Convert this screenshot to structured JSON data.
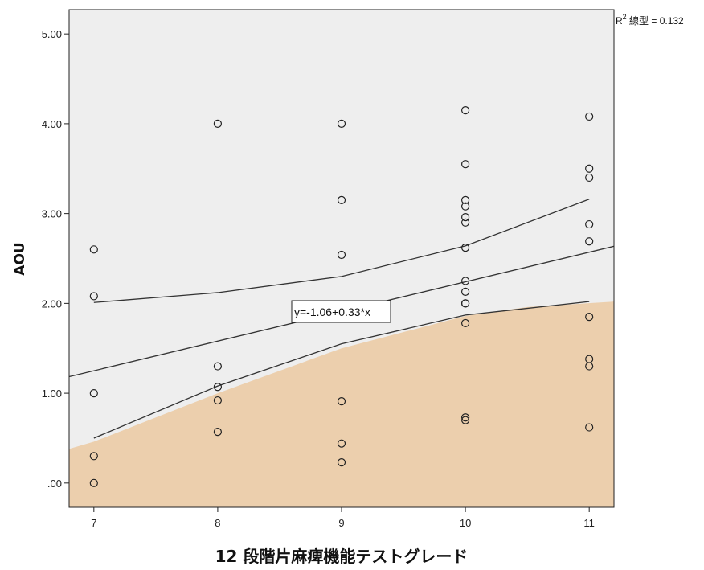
{
  "chart_data": {
    "type": "scatter",
    "title": "",
    "xlabel": "12 段階片麻痺機能テストグレード",
    "ylabel": "AOU",
    "xlim": [
      6.8,
      11.2
    ],
    "ylim": [
      -0.27,
      5.27
    ],
    "x_ticks": [
      "7",
      "8",
      "9",
      "10",
      "11"
    ],
    "y_ticks": [
      ".00",
      "1.00",
      "2.00",
      "3.00",
      "4.00",
      "5.00"
    ],
    "x_tick_values": [
      7,
      8,
      9,
      10,
      11
    ],
    "y_tick_values": [
      0,
      1,
      2,
      3,
      4,
      5
    ],
    "grid": false,
    "r2_label_prefix": "R",
    "r2_label_sup": "2",
    "r2_label_rest": " 線型 = 0.132",
    "fit_equation": "y=-1.06+0.33*x",
    "fit_intercept": -1.06,
    "fit_slope": 0.33,
    "ci_upper": [
      [
        7,
        2.01
      ],
      [
        8,
        2.12
      ],
      [
        9,
        2.3
      ],
      [
        10,
        2.64
      ],
      [
        11,
        3.16
      ]
    ],
    "ci_lower": [
      [
        7,
        0.5
      ],
      [
        8,
        1.08
      ],
      [
        9,
        1.55
      ],
      [
        10,
        1.87
      ],
      [
        11,
        2.02
      ]
    ],
    "highlight_region_upper": [
      [
        6.8,
        0.38
      ],
      [
        7,
        0.46
      ],
      [
        8,
        1.0
      ],
      [
        9,
        1.5
      ],
      [
        10,
        1.86
      ],
      [
        10.5,
        1.96
      ],
      [
        11.2,
        2.02
      ]
    ],
    "colors": {
      "plot_background": "#eeeeee",
      "highlight_fill": "#eccfad",
      "marker_stroke": "#222222",
      "line": "#333333"
    },
    "points": [
      {
        "x": 7,
        "y": 2.6
      },
      {
        "x": 7,
        "y": 2.08
      },
      {
        "x": 7,
        "y": 1.0
      },
      {
        "x": 7,
        "y": 0.3
      },
      {
        "x": 7,
        "y": 0.0
      },
      {
        "x": 8,
        "y": 4.0
      },
      {
        "x": 8,
        "y": 1.3
      },
      {
        "x": 8,
        "y": 1.07
      },
      {
        "x": 8,
        "y": 0.92
      },
      {
        "x": 8,
        "y": 0.57
      },
      {
        "x": 9,
        "y": 4.0
      },
      {
        "x": 9,
        "y": 3.15
      },
      {
        "x": 9,
        "y": 2.54
      },
      {
        "x": 9,
        "y": 0.91
      },
      {
        "x": 9,
        "y": 0.44
      },
      {
        "x": 9,
        "y": 0.23
      },
      {
        "x": 10,
        "y": 4.15
      },
      {
        "x": 10,
        "y": 3.55
      },
      {
        "x": 10,
        "y": 3.15
      },
      {
        "x": 10,
        "y": 3.08
      },
      {
        "x": 10,
        "y": 2.96
      },
      {
        "x": 10,
        "y": 2.9
      },
      {
        "x": 10,
        "y": 2.62
      },
      {
        "x": 10,
        "y": 2.25
      },
      {
        "x": 10,
        "y": 2.13
      },
      {
        "x": 10,
        "y": 2.0
      },
      {
        "x": 10,
        "y": 2.0
      },
      {
        "x": 10,
        "y": 1.78
      },
      {
        "x": 10,
        "y": 0.73
      },
      {
        "x": 10,
        "y": 0.7
      },
      {
        "x": 11,
        "y": 4.08
      },
      {
        "x": 11,
        "y": 3.5
      },
      {
        "x": 11,
        "y": 3.4
      },
      {
        "x": 11,
        "y": 2.88
      },
      {
        "x": 11,
        "y": 2.69
      },
      {
        "x": 11,
        "y": 1.85
      },
      {
        "x": 11,
        "y": 1.38
      },
      {
        "x": 11,
        "y": 1.3
      },
      {
        "x": 11,
        "y": 0.62
      }
    ]
  }
}
